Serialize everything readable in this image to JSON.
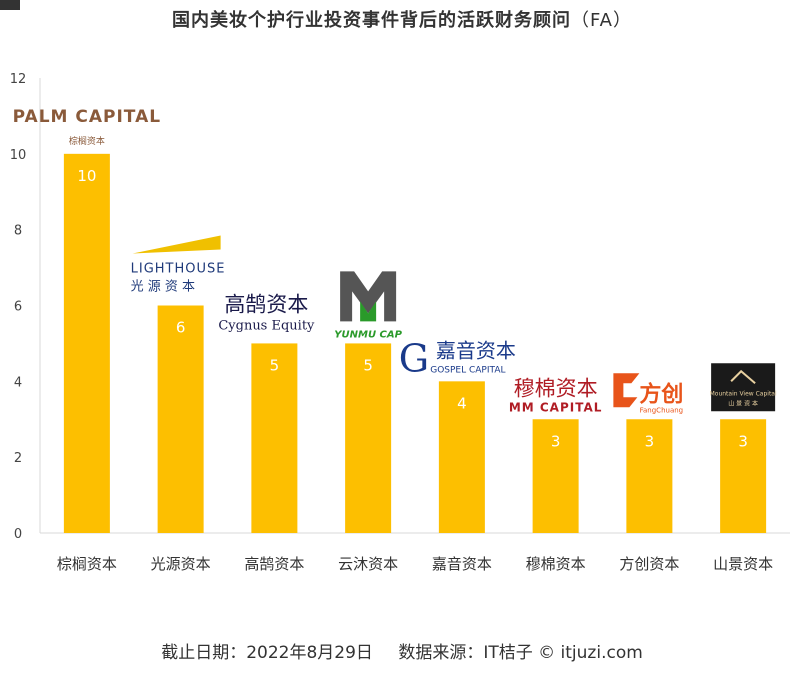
{
  "title": "国内美妆个护行业投资事件背后的活跃财务顾问",
  "title_suffix": "（FA）",
  "footer": {
    "date": "截止日期：2022年8月29日",
    "source": "数据来源：IT桔子 © itjuzi.com"
  },
  "colors": {
    "bar": "#FDBF00",
    "bar_label": "#ffffff",
    "grid": "#d9d9d9"
  },
  "logos": [
    {
      "main": "PALM CAPITAL",
      "sub": "棕榈资本",
      "color": "#8a5a3a"
    },
    {
      "main": "LIGHTHOUSE",
      "sub": "光 源 资 本",
      "color": "#1f3a7a",
      "accent": "#f0c000"
    },
    {
      "main": "高鹄资本",
      "sub": "Cygnus Equity",
      "color": "#1a1a4a"
    },
    {
      "main": "YUNMU CAP",
      "color": "#2a9a2a",
      "dark": "#555555"
    },
    {
      "main": "嘉音资本",
      "sub": "GOSPEL CAPITAL",
      "color": "#1a3a8a"
    },
    {
      "main": "穆棉资本",
      "sub": "MM CAPITAL",
      "color": "#b01c24"
    },
    {
      "main": "方创",
      "sub": "FangChuang",
      "color": "#e8541a"
    },
    {
      "main": "Mountain View Capital",
      "sub": "山 景 资 本",
      "color": "#e8d0a0",
      "bg": "#1a1a1a"
    }
  ],
  "chart_data": {
    "type": "bar",
    "title": "国内美妆个护行业投资事件背后的活跃财务顾问（FA）",
    "categories": [
      "棕榈资本",
      "光源资本",
      "高鹄资本",
      "云沐资本",
      "嘉音资本",
      "穆棉资本",
      "方创资本",
      "山景资本"
    ],
    "values": [
      10,
      6,
      5,
      5,
      4,
      3,
      3,
      3
    ],
    "ylim": [
      0,
      12
    ],
    "yticks": [
      0,
      2,
      4,
      6,
      8,
      10,
      12
    ],
    "xlabel": "",
    "ylabel": "",
    "grid": false,
    "data_labels": true
  }
}
